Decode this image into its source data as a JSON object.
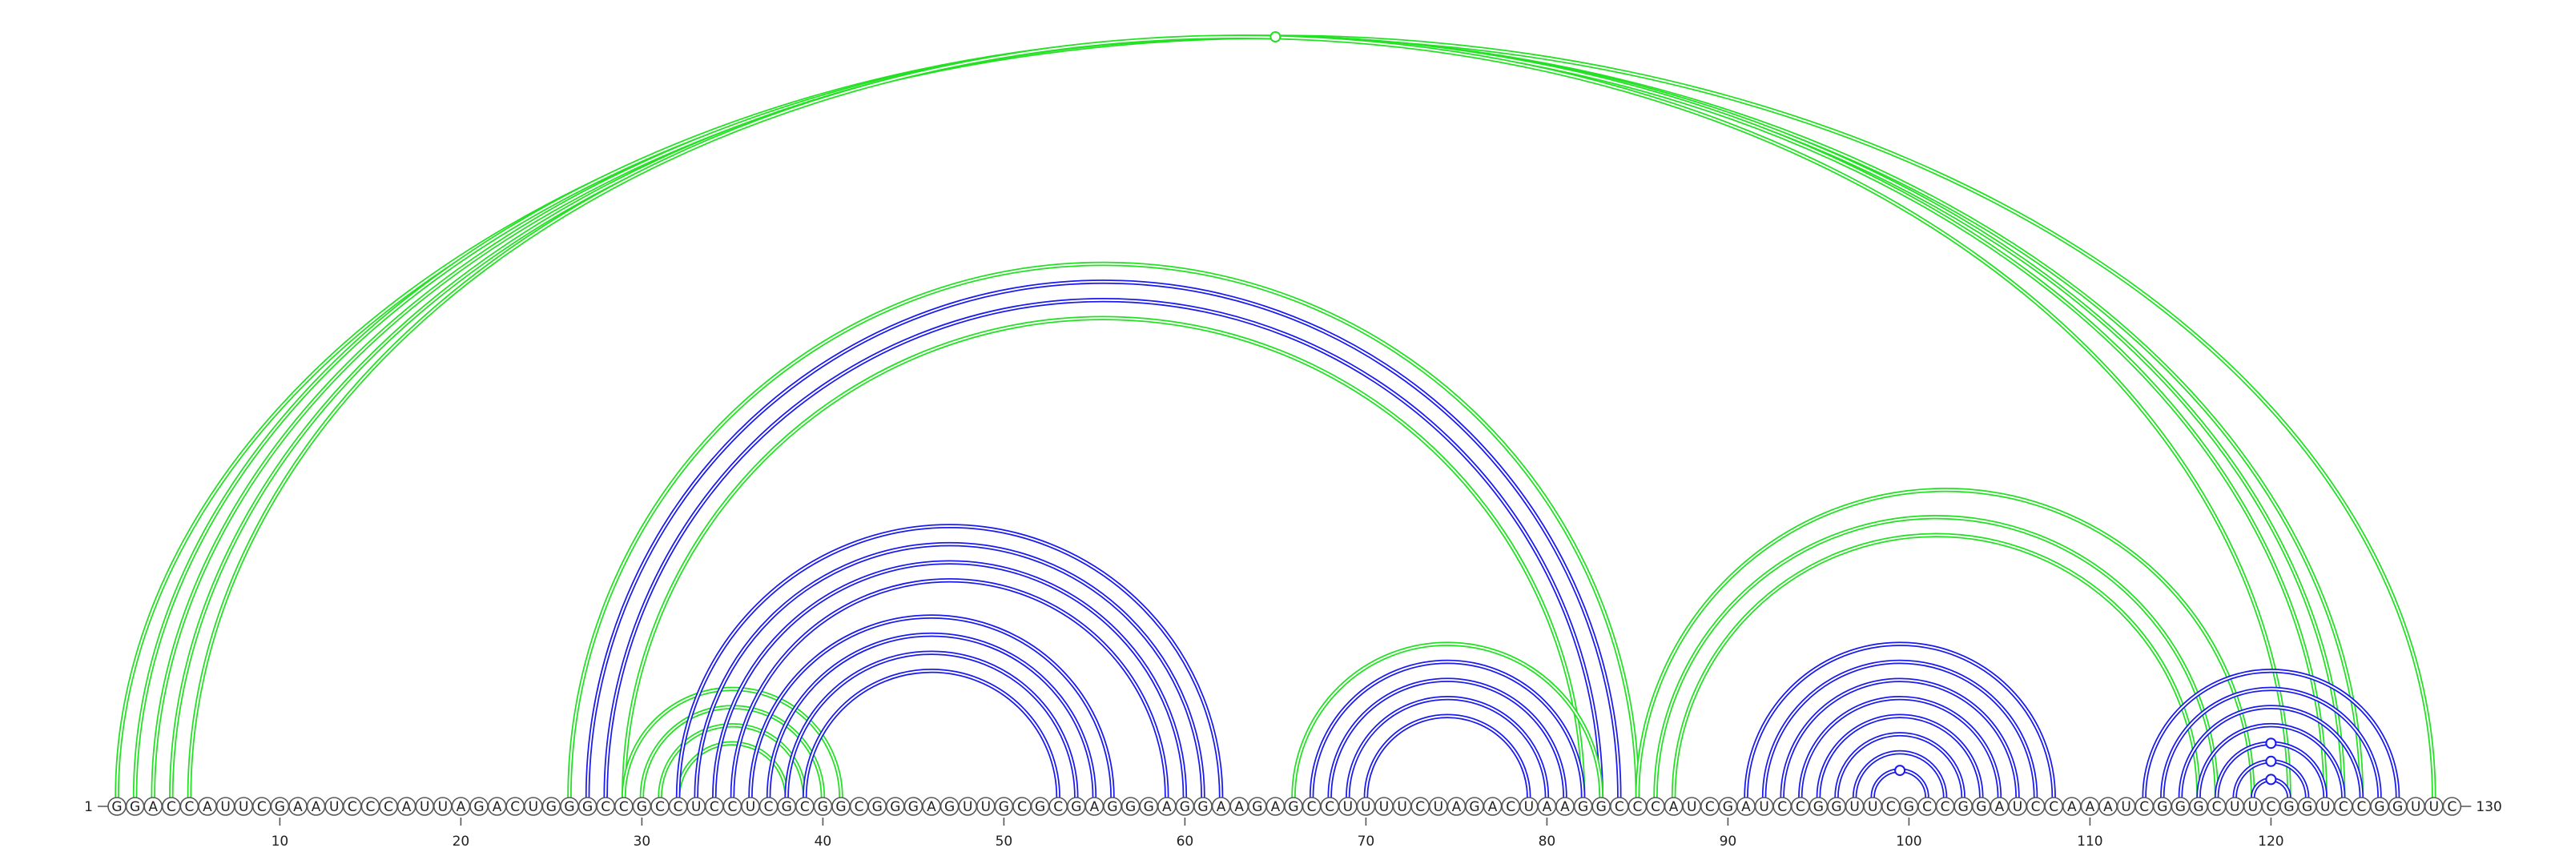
{
  "sequence": "GGACCAUUCGAAUCCCAUUAGACUGGGCCGCCUCCUCGCGGCGGGAGUUGCGCGAGGGAGGAAGAGCCUUUUCUAGACUAAGGCCCAUCGAUCCGGUUCGCCGGAUCCAAAUCGGGCUUCGGUCCGGUUC",
  "start_label": "1",
  "end_label": "130",
  "tick_positions": [
    "10",
    "20",
    "30",
    "40",
    "50",
    "60",
    "70",
    "80",
    "90",
    "100",
    "110",
    "120"
  ],
  "colors": {
    "green": "#22e022",
    "blue": "#1a1aee"
  },
  "helices": [
    {
      "color": "green",
      "i": 1,
      "j": 129,
      "n": 1
    },
    {
      "color": "green",
      "i": 2,
      "j": 125,
      "n": 3
    },
    {
      "color": "green",
      "i": 5,
      "j": 121,
      "n": 1
    },
    {
      "color": "green",
      "i": 26,
      "j": 85,
      "n": 1
    },
    {
      "color": "blue",
      "i": 27,
      "j": 84,
      "n": 2
    },
    {
      "color": "green",
      "i": 29,
      "j": 82,
      "n": 1
    },
    {
      "color": "green",
      "i": 29,
      "j": 41,
      "n": 4
    },
    {
      "color": "blue",
      "i": 32,
      "j": 62,
      "n": 4
    },
    {
      "color": "blue",
      "i": 36,
      "j": 56,
      "n": 4
    },
    {
      "color": "green",
      "i": 66,
      "j": 83,
      "n": 1
    },
    {
      "color": "blue",
      "i": 67,
      "j": 82,
      "n": 4
    },
    {
      "color": "green",
      "i": 85,
      "j": 119,
      "n": 1
    },
    {
      "color": "green",
      "i": 86,
      "j": 117,
      "n": 2
    },
    {
      "color": "blue",
      "i": 91,
      "j": 108,
      "n": 4
    },
    {
      "color": "blue",
      "i": 95,
      "j": 104,
      "n": 4
    },
    {
      "color": "blue",
      "i": 113,
      "j": 127,
      "n": 4
    },
    {
      "color": "blue",
      "i": 117,
      "j": 123,
      "n": 3
    }
  ],
  "markers": [
    {
      "color": "green",
      "i": 1,
      "j": 129
    },
    {
      "color": "blue",
      "i": 117,
      "j": 123
    },
    {
      "color": "blue",
      "i": 118,
      "j": 122
    },
    {
      "color": "blue",
      "i": 119,
      "j": 121
    },
    {
      "color": "blue",
      "i": 98,
      "j": 101
    }
  ]
}
